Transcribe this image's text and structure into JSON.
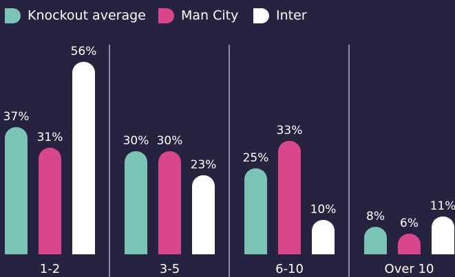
{
  "chart_data": {
    "type": "bar",
    "categories": [
      "1-2",
      "3-5",
      "6-10",
      "Over 10"
    ],
    "series": [
      {
        "name": "Knockout average",
        "color": "#79c4b4",
        "values": [
          37,
          30,
          25,
          8
        ],
        "value_labels": [
          "37%",
          "30%",
          "25%",
          "8%"
        ]
      },
      {
        "name": "Man City",
        "color": "#d9468a",
        "values": [
          31,
          30,
          33,
          6
        ],
        "value_labels": [
          "31%",
          "30%",
          "33%",
          "6%"
        ]
      },
      {
        "name": "Inter",
        "color": "#ffffff",
        "values": [
          56,
          23,
          10,
          11
        ],
        "value_labels": [
          "56%",
          "23%",
          "10%",
          "11%"
        ]
      }
    ],
    "legend": "top-left"
  }
}
